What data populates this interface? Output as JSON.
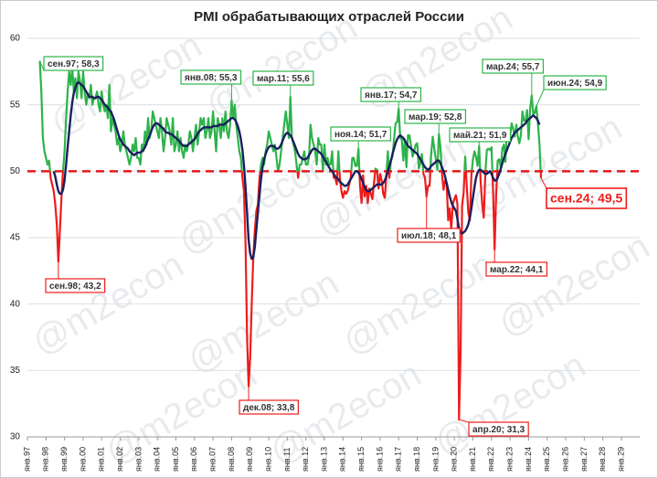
{
  "chart_data": {
    "type": "line",
    "title": "PMI обрабатывающих отраслей России",
    "watermark": "@m2econ",
    "categories": [
      "янв.97",
      null,
      null,
      null,
      null,
      null,
      null,
      null,
      null,
      null,
      null,
      null,
      "янв.98",
      null,
      null,
      null,
      null,
      null,
      null,
      null,
      null,
      null,
      null,
      null,
      "янв.99",
      null,
      null,
      null,
      null,
      null,
      null,
      null,
      null,
      null,
      null,
      null,
      "янв.00",
      null,
      null,
      null,
      null,
      null,
      null,
      null,
      null,
      null,
      null,
      null,
      "янв.01",
      null,
      null,
      null,
      null,
      null,
      null,
      null,
      null,
      null,
      null,
      null,
      "янв.02",
      null,
      null,
      null,
      null,
      null,
      null,
      null,
      null,
      null,
      null,
      null,
      "янв.03",
      null,
      null,
      null,
      null,
      null,
      null,
      null,
      null,
      null,
      null,
      null,
      "янв.04",
      null,
      null,
      null,
      null,
      null,
      null,
      null,
      null,
      null,
      null,
      null,
      "янв.05",
      null,
      null,
      null,
      null,
      null,
      null,
      null,
      null,
      null,
      null,
      null,
      "янв.06",
      null,
      null,
      null,
      null,
      null,
      null,
      null,
      null,
      null,
      null,
      null,
      "янв.07",
      null,
      null,
      null,
      null,
      null,
      null,
      null,
      null,
      null,
      null,
      null,
      "янв.08",
      null,
      null,
      null,
      null,
      null,
      null,
      null,
      null,
      null,
      null,
      null,
      "янв.09",
      null,
      null,
      null,
      null,
      null,
      null,
      null,
      null,
      null,
      null,
      null,
      "янв.10",
      null,
      null,
      null,
      null,
      null,
      null,
      null,
      null,
      null,
      null,
      null,
      "янв.11",
      null,
      null,
      null,
      null,
      null,
      null,
      null,
      null,
      null,
      null,
      null,
      "янв.12",
      null,
      null,
      null,
      null,
      null,
      null,
      null,
      null,
      null,
      null,
      null,
      "янв.13",
      null,
      null,
      null,
      null,
      null,
      null,
      null,
      null,
      null,
      null,
      null,
      "янв.14",
      null,
      null,
      null,
      null,
      null,
      null,
      null,
      null,
      null,
      null,
      null,
      "янв.15",
      null,
      null,
      null,
      null,
      null,
      null,
      null,
      null,
      null,
      null,
      null,
      "янв.16",
      null,
      null,
      null,
      null,
      null,
      null,
      null,
      null,
      null,
      null,
      null,
      "янв.17",
      null,
      null,
      null,
      null,
      null,
      null,
      null,
      null,
      null,
      null,
      null,
      "янв.18",
      null,
      null,
      null,
      null,
      null,
      null,
      null,
      null,
      null,
      null,
      null,
      "янв.19",
      null,
      null,
      null,
      null,
      null,
      null,
      null,
      null,
      null,
      null,
      null,
      "янв.20",
      null,
      null,
      null,
      null,
      null,
      null,
      null,
      null,
      null,
      null,
      null,
      "янв.21",
      null,
      null,
      null,
      null,
      null,
      null,
      null,
      null,
      null,
      null,
      null,
      "янв.22",
      null,
      null,
      null,
      null,
      null,
      null,
      null,
      null,
      null,
      null,
      null,
      "янв.23",
      null,
      null,
      null,
      null,
      null,
      null,
      null,
      null,
      null,
      null,
      null,
      "янв.24",
      null,
      null,
      null,
      null,
      null,
      null,
      null,
      null,
      null,
      null,
      null,
      "янв.25",
      null,
      null,
      null,
      null,
      null,
      null,
      null,
      null,
      null,
      null,
      null,
      "янв.26",
      null,
      null,
      null,
      null,
      null,
      null,
      null,
      null,
      null,
      null,
      null,
      "янв.27",
      null,
      null,
      null,
      null,
      null,
      null,
      null,
      null,
      null,
      null,
      null,
      "янв.28",
      null,
      null,
      null,
      null,
      null,
      null,
      null,
      null,
      null,
      null,
      null,
      "янв.29"
    ],
    "series": [
      {
        "color": "#2db34a",
        "color_below": "#ee1c1c",
        "values": [
          null,
          null,
          null,
          null,
          null,
          null,
          null,
          null,
          58.3,
          56,
          52.5,
          51.5,
          51,
          50.5,
          50.8,
          49.5,
          49,
          48.5,
          47.5,
          46,
          43.2,
          45.5,
          48,
          50,
          51.5,
          54,
          56,
          57.5,
          56.5,
          57.8,
          56,
          57,
          55.5,
          57.5,
          56.8,
          55.5,
          57.5,
          56,
          55,
          55.8,
          55.5,
          56.5,
          55,
          55.5,
          55.5,
          56,
          55,
          54.5,
          56,
          55,
          54.5,
          55,
          54,
          56.5,
          53,
          54,
          53.5,
          53,
          52,
          52.5,
          51.5,
          52,
          53,
          52,
          51.5,
          51,
          50.5,
          51,
          52,
          51.5,
          52.5,
          51,
          51,
          50.5,
          52,
          51.5,
          53,
          52,
          54,
          52.5,
          53,
          54.5,
          54,
          53.5,
          53,
          52.5,
          54,
          53,
          51.5,
          52.5,
          54,
          53.5,
          53,
          52,
          54,
          51.5,
          52,
          53,
          51.5,
          52.5,
          51.5,
          51,
          52,
          51.5,
          52,
          53,
          52.5,
          51.5,
          52.5,
          53.5,
          52,
          53,
          54,
          53.5,
          54,
          52.5,
          53,
          54,
          52.5,
          53,
          54.5,
          53,
          51.5,
          54,
          53.5,
          52.5,
          54,
          53,
          54.5,
          53,
          52.5,
          53.5,
          55.3,
          54,
          55,
          53.5,
          52.5,
          51.5,
          51,
          49.5,
          48.5,
          44.5,
          37.5,
          33.8,
          36,
          40,
          43.5,
          45.5,
          47,
          47.5,
          49.5,
          50.5,
          51,
          50.5,
          51.5,
          52,
          53,
          52.5,
          52,
          51.5,
          52,
          51,
          50,
          50.5,
          51.5,
          52.5,
          53.5,
          54.5,
          53.5,
          52.5,
          55.6,
          52.5,
          52,
          51.5,
          50.5,
          49.5,
          50.5,
          50.5,
          51,
          51.5,
          50.5,
          50.5,
          51,
          53.5,
          52.5,
          52,
          51.5,
          50.5,
          52.5,
          52,
          52,
          50,
          52,
          50.5,
          51,
          50.5,
          50.5,
          51.5,
          49.5,
          49.5,
          49,
          51.5,
          49.5,
          48.5,
          48,
          48.5,
          48.3,
          48.5,
          49,
          49.5,
          51,
          51,
          50.4,
          50.4,
          51.7,
          48.9,
          47.6,
          49.7,
          48.1,
          48.9,
          47.6,
          48.7,
          48.3,
          47.9,
          49.1,
          50.2,
          50.1,
          48.7,
          49.8,
          49.3,
          48.3,
          48,
          49.6,
          51.5,
          49.5,
          50.8,
          51.1,
          52.4,
          53.6,
          53.7,
          54.7,
          52.5,
          52.4,
          50.8,
          52.4,
          50.3,
          52.7,
          52.7,
          51.9,
          51.1,
          51.5,
          52,
          52.1,
          50.2,
          50.6,
          51.3,
          49.8,
          49.5,
          48.1,
          48.9,
          48.9,
          51.3,
          52.6,
          51.7,
          50.9,
          50.1,
          52.8,
          51.8,
          49.8,
          48.6,
          49.3,
          49.1,
          46.3,
          47.2,
          45.6,
          47.5,
          47.9,
          48.2,
          47.5,
          31.3,
          36.2,
          47.4,
          48.4,
          51.1,
          48.9,
          46.9,
          46.3,
          49.7,
          50.9,
          51.5,
          51.1,
          50.4,
          51.9,
          49.2,
          47.5,
          46.5,
          49.8,
          51.6,
          51.7,
          51.6,
          51.8,
          48.6,
          44.1,
          48.2,
          50.8,
          50.9,
          50.3,
          51.7,
          52,
          50.7,
          53.2,
          53,
          52.6,
          53.6,
          53.2,
          52.6,
          53.5,
          52.6,
          52.1,
          52.7,
          54.5,
          53.8,
          53.8,
          54.6,
          52.4,
          54.7,
          55.7,
          54.3,
          54.4,
          54.9,
          53.6,
          52.1,
          49.5,
          null,
          null,
          null,
          null,
          null,
          null,
          null,
          null,
          null,
          null,
          null,
          null,
          null,
          null,
          null,
          null,
          null,
          null,
          null,
          null,
          null,
          null,
          null,
          null,
          null,
          null,
          null,
          null,
          null,
          null,
          null,
          null,
          null,
          null,
          null,
          null,
          null,
          null,
          null,
          null,
          null,
          null,
          null,
          null,
          null,
          null,
          null,
          null,
          null,
          null,
          null,
          null
        ]
      },
      {
        "color": "#1a1f5e",
        "values": [
          null,
          null,
          null,
          null,
          null,
          null,
          null,
          null,
          null,
          null,
          null,
          null,
          null,
          null,
          null,
          null,
          null,
          50,
          49.6,
          49,
          48.5,
          48.3,
          48.3,
          48.6,
          49.3,
          50.5,
          51.8,
          53,
          54.2,
          55.2,
          55.9,
          56.3,
          56.6,
          56.7,
          56.6,
          56.5,
          56.4,
          56.2,
          56,
          55.8,
          55.6,
          55.6,
          55.6,
          55.5,
          55.5,
          55.6,
          55.6,
          55.5,
          55.4,
          55.2,
          55,
          54.9,
          54.8,
          54.6,
          54.5,
          54.2,
          53.9,
          53.5,
          53.1,
          52.7,
          52.4,
          52.2,
          52,
          51.9,
          51.8,
          51.7,
          51.5,
          51.4,
          51.3,
          51.2,
          51.3,
          51.4,
          51.4,
          51.4,
          51.5,
          51.6,
          51.8,
          52.1,
          52.4,
          52.7,
          53,
          53.3,
          53.5,
          53.6,
          53.6,
          53.5,
          53.4,
          53.3,
          53.2,
          53,
          52.9,
          52.9,
          52.8,
          52.8,
          52.7,
          52.6,
          52.5,
          52.4,
          52.3,
          52.1,
          52,
          51.9,
          51.9,
          51.9,
          52,
          52.1,
          52.2,
          52.3,
          52.4,
          52.6,
          52.8,
          53,
          53.1,
          53.2,
          53.3,
          53.3,
          53.3,
          53.3,
          53.3,
          53.3,
          53.4,
          53.4,
          53.4,
          53.4,
          53.5,
          53.5,
          53.5,
          53.5,
          53.6,
          53.7,
          53.8,
          53.9,
          54,
          54,
          53.9,
          53.7,
          53.4,
          53,
          52.4,
          51.6,
          50.4,
          48.8,
          46.8,
          44.8,
          43.8,
          43.4,
          43.5,
          44.3,
          45.6,
          46.9,
          48.2,
          49.4,
          50.3,
          50.9,
          51.3,
          51.6,
          51.8,
          51.9,
          51.9,
          51.9,
          51.8,
          51.7,
          51.7,
          51.8,
          52,
          52.3,
          52.6,
          52.8,
          52.9,
          52.8,
          52.7,
          52.5,
          52.2,
          51.9,
          51.6,
          51.3,
          51.1,
          51,
          50.9,
          50.9,
          50.9,
          51,
          51.2,
          51.4,
          51.6,
          51.7,
          51.7,
          51.6,
          51.5,
          51.4,
          51.3,
          51.1,
          50.9,
          50.7,
          50.5,
          50.3,
          50.1,
          50,
          49.8,
          49.6,
          49.5,
          49.4,
          49.2,
          49.1,
          49,
          48.9,
          48.9,
          49,
          49.2,
          49.4,
          49.6,
          49.8,
          50,
          50,
          49.9,
          49.7,
          49.4,
          49.1,
          48.8,
          48.6,
          48.5,
          48.5,
          48.6,
          48.7,
          48.8,
          48.9,
          49,
          49,
          49,
          49,
          49.1,
          49.3,
          49.6,
          50,
          50.4,
          50.8,
          51.3,
          51.7,
          52.1,
          52.4,
          52.6,
          52.7,
          52.6,
          52.5,
          52.3,
          52.1,
          51.9,
          51.8,
          51.7,
          51.6,
          51.5,
          51.4,
          51.3,
          51.1,
          50.9,
          50.7,
          50.5,
          50.3,
          50.2,
          50.1,
          50.2,
          50.4,
          50.5,
          50.6,
          50.7,
          50.8,
          50.8,
          50.6,
          50.3,
          50,
          49.6,
          49.1,
          48.6,
          48.1,
          47.7,
          47.4,
          47.2,
          47,
          46.4,
          45.7,
          45.4,
          45.3,
          45.4,
          45.5,
          45.7,
          46,
          46.5,
          47.2,
          48,
          48.8,
          49.5,
          49.9,
          50.1,
          50.1,
          50,
          49.9,
          49.8,
          49.8,
          49.9,
          50,
          49.8,
          49.5,
          49.3,
          49.3,
          49.5,
          49.8,
          50.2,
          50.6,
          51,
          51.3,
          51.6,
          51.9,
          52.2,
          52.5,
          52.7,
          52.9,
          53,
          53.1,
          53.2,
          53.3,
          53.4,
          53.5,
          53.6,
          53.8,
          53.9,
          54,
          54.1,
          54.2,
          54.1,
          54,
          53.8,
          53.5,
          null,
          null,
          null,
          null,
          null,
          null,
          null,
          null,
          null,
          null,
          null,
          null,
          null,
          null,
          null,
          null,
          null,
          null,
          null,
          null,
          null,
          null,
          null,
          null,
          null,
          null,
          null,
          null,
          null,
          null,
          null,
          null,
          null,
          null,
          null,
          null,
          null,
          null,
          null,
          null,
          null,
          null,
          null,
          null,
          null,
          null,
          null,
          null,
          null,
          null,
          null,
          null,
          null
        ]
      }
    ],
    "reference_line": 50,
    "reference_color": "#e31a1c",
    "ylim": [
      30,
      60
    ],
    "yticks": [
      30,
      35,
      40,
      45,
      50,
      55,
      60
    ],
    "grid": true,
    "annotations": [
      "сен.97; 58,3",
      "сен.98; 43,2",
      "янв.08; 55,3",
      "дек.08; 33,8",
      "мар.11; 55,6",
      "ноя.14; 51,7",
      "янв.17; 54,7",
      "мар.19; 52,8",
      "июл.18; 48,1",
      "апр.20; 31,3",
      "май.21; 51,9",
      "мар.22; 44,1",
      "мар.24; 55,7",
      "июн.24; 54,9",
      "сен.24; 49,5"
    ]
  }
}
